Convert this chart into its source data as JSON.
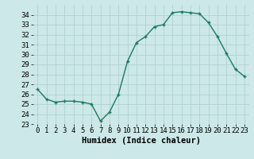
{
  "x": [
    0,
    1,
    2,
    3,
    4,
    5,
    6,
    7,
    8,
    9,
    10,
    11,
    12,
    13,
    14,
    15,
    16,
    17,
    18,
    19,
    20,
    21,
    22,
    23
  ],
  "y": [
    26.5,
    25.5,
    25.2,
    25.3,
    25.3,
    25.2,
    25.0,
    23.3,
    24.2,
    26.0,
    29.3,
    31.2,
    31.8,
    32.8,
    33.0,
    34.2,
    34.3,
    34.2,
    34.1,
    33.2,
    31.8,
    30.1,
    28.5,
    27.8
  ],
  "xlabel": "Humidex (Indice chaleur)",
  "ylim": [
    23,
    35
  ],
  "xlim": [
    -0.5,
    23.5
  ],
  "yticks": [
    23,
    24,
    25,
    26,
    27,
    28,
    29,
    30,
    31,
    32,
    33,
    34
  ],
  "xticks": [
    0,
    1,
    2,
    3,
    4,
    5,
    6,
    7,
    8,
    9,
    10,
    11,
    12,
    13,
    14,
    15,
    16,
    17,
    18,
    19,
    20,
    21,
    22,
    23
  ],
  "line_color": "#1a7a5e",
  "marker_color": "#1a7a5e",
  "bg_color": "#cce8e8",
  "grid_color": "#aacece",
  "tick_fontsize": 6.5,
  "xlabel_fontsize": 7.5,
  "xlabel_fontweight": "bold",
  "line_width": 1.0,
  "marker_size": 3.5
}
